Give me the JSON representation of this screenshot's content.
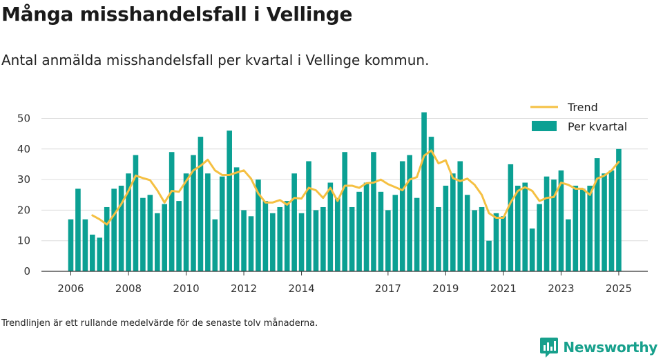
{
  "title": "Många misshandelsfall i Vellinge",
  "subtitle": "Antal anmälda misshandelsfall per kvartal i Vellinge kommun.",
  "note": "Trendlinjen är ett rullande medelvärde för de senaste tolv månaderna.",
  "brand": {
    "name": "Newsworthy",
    "icon": "newsworthy-logo-icon"
  },
  "colors": {
    "bar": "#0ba093",
    "trend": "#f5c042",
    "grid": "#dcdcdc",
    "axis": "#333333"
  },
  "chart_data": {
    "type": "bar",
    "ylim": [
      0,
      55
    ],
    "grid": true,
    "legend_position": "top-right",
    "y_ticks": [
      "0",
      "10",
      "20",
      "30",
      "40",
      "50"
    ],
    "x_ticks": [
      "2006",
      "2008",
      "2010",
      "2012",
      "2014",
      "2017",
      "2019",
      "2021",
      "2023",
      "2025"
    ],
    "series": [
      {
        "name": "Per kvartal",
        "kind": "bar",
        "values": [
          17,
          27,
          17,
          12,
          11,
          21,
          27,
          28,
          32,
          38,
          24,
          25,
          19,
          22,
          39,
          23,
          32,
          38,
          44,
          32,
          17,
          31,
          46,
          34,
          20,
          18,
          30,
          23,
          19,
          21,
          23,
          32,
          19,
          36,
          20,
          21,
          29,
          24,
          39,
          21,
          26,
          29,
          39,
          26,
          20,
          25,
          36,
          38,
          24,
          52,
          44,
          21,
          28,
          32,
          36,
          25,
          20,
          21,
          10,
          19,
          18,
          35,
          28,
          29,
          14,
          22,
          31,
          30,
          33,
          17,
          28,
          27,
          28,
          37,
          32,
          33,
          40
        ]
      },
      {
        "name": "Trend",
        "kind": "line",
        "values": [
          null,
          null,
          null,
          18.3,
          17,
          15.3,
          18.5,
          22,
          26.3,
          31.3,
          30.5,
          29.8,
          26.5,
          22.5,
          26.3,
          26,
          29.5,
          33,
          34.5,
          36.5,
          33,
          31.5,
          31.5,
          32.3,
          33,
          30.3,
          25.5,
          22.5,
          22.5,
          23.3,
          21.8,
          24,
          23.8,
          27.3,
          26.5,
          24,
          27.3,
          23,
          28,
          28,
          27.3,
          28.8,
          29,
          30,
          28.5,
          27.5,
          26.5,
          30,
          30.8,
          37.8,
          39.5,
          35.3,
          36.3,
          30.5,
          29.5,
          30.3,
          28.3,
          25,
          19,
          17.5,
          17.5,
          22.5,
          26.3,
          27.5,
          26.3,
          23,
          24,
          24.3,
          29,
          28.3,
          27,
          27,
          25,
          30.3,
          31.3,
          33,
          35.8
        ]
      }
    ]
  }
}
